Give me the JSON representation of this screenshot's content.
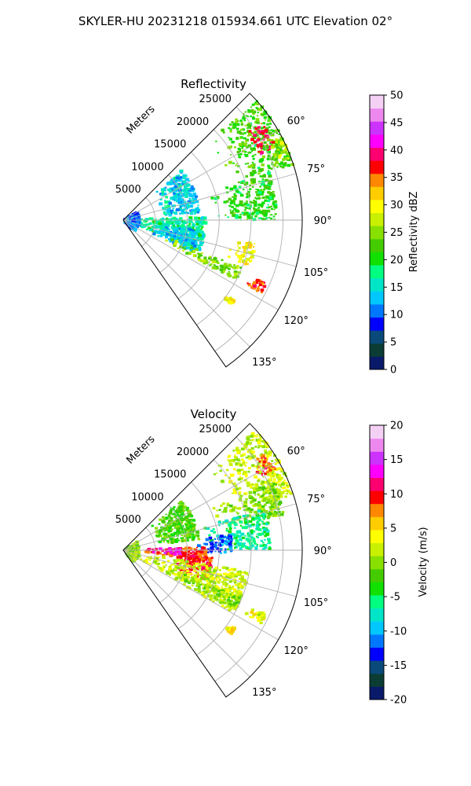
{
  "figure": {
    "title": "SKYLER-HU  20231218  015934.661 UTC Elevation 02°"
  },
  "chart_data": [
    {
      "type": "polar-ppi",
      "title": "Reflectivity",
      "range_label": "Meters",
      "range_ticks": [
        "5000",
        "10000",
        "15000",
        "20000",
        "25000"
      ],
      "range_values": [
        5000,
        10000,
        15000,
        20000,
        25000
      ],
      "range_max": 28000,
      "azimuth_range_deg": [
        45,
        145
      ],
      "azimuth_ticks": [
        "60°",
        "75°",
        "90°",
        "105°",
        "120°",
        "135°"
      ],
      "azimuth_values": [
        60,
        75,
        90,
        105,
        120,
        135
      ],
      "grid": true,
      "colorbar": {
        "label": "Reflectivity dBZ",
        "ticks": [
          "0",
          "5",
          "10",
          "15",
          "20",
          "25",
          "30",
          "35",
          "40",
          "45",
          "50"
        ],
        "vmin": 0,
        "vmax": 50
      },
      "colors": [
        "#0a1a6b",
        "#0b3d35",
        "#0a4a7a",
        "#0000ff",
        "#0077ff",
        "#00c8ff",
        "#00e5c8",
        "#00ff80",
        "#11e000",
        "#44cc00",
        "#88e000",
        "#c8f000",
        "#ffff00",
        "#ffcc00",
        "#ff8800",
        "#ff0000",
        "#ff0070",
        "#ff00ff",
        "#cc33ff",
        "#ee88ee",
        "#f5d0f5"
      ],
      "echo_regions": [
        {
          "az": [
            48,
            72
          ],
          "r": [
            18000,
            28000
          ],
          "value": 22
        },
        {
          "az": [
            55,
            65
          ],
          "r": [
            23000,
            26500
          ],
          "value": 38
        },
        {
          "az": [
            62,
            70
          ],
          "r": [
            24500,
            28000
          ],
          "value": 27
        },
        {
          "az": [
            72,
            90
          ],
          "r": [
            14000,
            24000
          ],
          "value": 21
        },
        {
          "az": [
            50,
            85
          ],
          "r": [
            6000,
            12000
          ],
          "value": 14
        },
        {
          "az": [
            88,
            112
          ],
          "r": [
            500,
            13000
          ],
          "value": 17
        },
        {
          "az": [
            98,
            115
          ],
          "r": [
            5000,
            12000
          ],
          "value": 13
        },
        {
          "az": [
            112,
            118
          ],
          "r": [
            7000,
            20000
          ],
          "value": 25
        },
        {
          "az": [
            100,
            110
          ],
          "r": [
            17000,
            21000
          ],
          "value": 30
        },
        {
          "az": [
            114,
            118
          ],
          "r": [
            21500,
            24500
          ],
          "value": 36
        },
        {
          "az": [
            126,
            128
          ],
          "r": [
            20000,
            21500
          ],
          "value": 30
        },
        {
          "az": [
            60,
            140
          ],
          "r": [
            200,
            2500
          ],
          "value": 11
        }
      ]
    },
    {
      "type": "polar-ppi",
      "title": "Velocity",
      "range_label": "Meters",
      "range_ticks": [
        "5000",
        "10000",
        "15000",
        "20000",
        "25000"
      ],
      "range_values": [
        5000,
        10000,
        15000,
        20000,
        25000
      ],
      "range_max": 28000,
      "azimuth_range_deg": [
        45,
        145
      ],
      "azimuth_ticks": [
        "60°",
        "75°",
        "90°",
        "105°",
        "120°",
        "135°"
      ],
      "azimuth_values": [
        60,
        75,
        90,
        105,
        120,
        135
      ],
      "grid": true,
      "colorbar": {
        "label": "Velocity (m/s)",
        "ticks": [
          "-20",
          "-15",
          "-10",
          "-5",
          "0",
          "5",
          "10",
          "15",
          "20"
        ],
        "vmin": -20,
        "vmax": 20
      },
      "colors": [
        "#0a1a6b",
        "#0b3d35",
        "#0a4a7a",
        "#0000ff",
        "#0077ff",
        "#00c8ff",
        "#00e5c8",
        "#00ff80",
        "#11e000",
        "#44cc00",
        "#88e000",
        "#c8f000",
        "#ffff00",
        "#ffcc00",
        "#ff8800",
        "#ff0000",
        "#ff0070",
        "#ff00ff",
        "#cc33ff",
        "#ee88ee",
        "#f5d0f5"
      ],
      "echo_regions": [
        {
          "az": [
            48,
            72
          ],
          "r": [
            18000,
            28000
          ],
          "value": 2
        },
        {
          "az": [
            56,
            62
          ],
          "r": [
            24000,
            27000
          ],
          "value": 9
        },
        {
          "az": [
            65,
            78
          ],
          "r": [
            15000,
            26000
          ],
          "value": 0
        },
        {
          "az": [
            74,
            90
          ],
          "r": [
            13000,
            23000
          ],
          "value": -6
        },
        {
          "az": [
            82,
            92
          ],
          "r": [
            11000,
            17000
          ],
          "value": -12
        },
        {
          "az": [
            50,
            82
          ],
          "r": [
            5000,
            12000
          ],
          "value": -2
        },
        {
          "az": [
            88,
            98
          ],
          "r": [
            3000,
            13000
          ],
          "value": 9
        },
        {
          "az": [
            88,
            95
          ],
          "r": [
            4000,
            9000
          ],
          "value": 14
        },
        {
          "az": [
            95,
            110
          ],
          "r": [
            8000,
            14000
          ],
          "value": 10
        },
        {
          "az": [
            100,
            120
          ],
          "r": [
            1500,
            20000
          ],
          "value": 2
        },
        {
          "az": [
            112,
            118
          ],
          "r": [
            7000,
            20000
          ],
          "value": 0
        },
        {
          "az": [
            114,
            118
          ],
          "r": [
            21500,
            24500
          ],
          "value": 3
        },
        {
          "az": [
            125,
            128
          ],
          "r": [
            20000,
            21500
          ],
          "value": 5
        },
        {
          "az": [
            60,
            140
          ],
          "r": [
            200,
            2500
          ],
          "value": 0
        }
      ]
    }
  ]
}
